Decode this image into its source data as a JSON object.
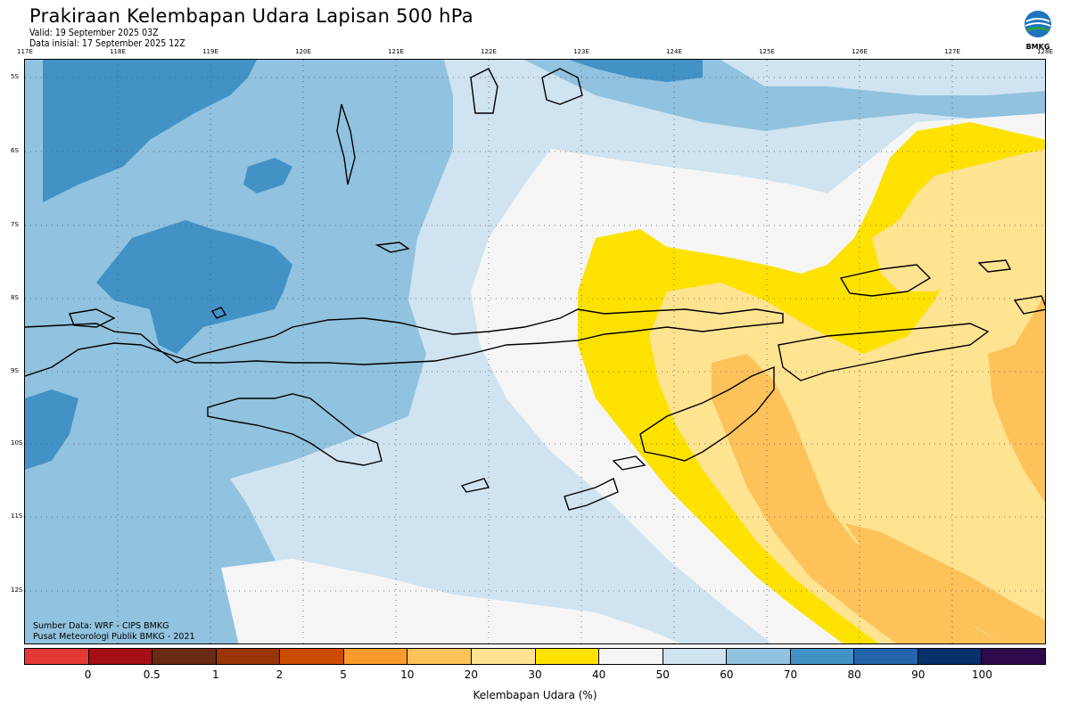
{
  "title": "Prakiraan Kelembapan Udara Lapisan 500 hPa",
  "valid": "Valid: 19 September 2025 03Z",
  "init": "Data inisial: 17 September 2025 12Z",
  "logo_text": "BMKG",
  "lon_labels": [
    "117E",
    "118E",
    "119E",
    "120E",
    "121E",
    "122E",
    "123E",
    "124E",
    "125E",
    "126E",
    "127E",
    "128E"
  ],
  "lat_labels": [
    "5S",
    "6S",
    "7S",
    "8S",
    "9S",
    "10S",
    "11S",
    "12S"
  ],
  "credit_source": "Sumber Data: WRF - CIPS BMKG",
  "credit_center": "Pusat Meteorologi Publik BMKG - 2021",
  "colorbar": {
    "ticks": [
      "0",
      "0.5",
      "1",
      "2",
      "5",
      "10",
      "20",
      "30",
      "40",
      "50",
      "60",
      "70",
      "80",
      "90",
      "100"
    ],
    "colors": [
      "#e53935",
      "#a50f15",
      "#6b2a14",
      "#993404",
      "#cc4c02",
      "#f89a2c",
      "#fdc259",
      "#fee391",
      "#fde200",
      "#f5f5f5",
      "#cfe3f0",
      "#91c2df",
      "#4292c6",
      "#2265ac",
      "#08306b",
      "#2d0b4b"
    ],
    "label": "Kelembapan Udara (%)"
  },
  "legend_colors": {
    "land_outline": "#000000",
    "humid_dark": "#4292c6",
    "humid_mid": "#91c2df",
    "humid_light": "#cfe3f0",
    "neutral": "#f5f5f5",
    "dry_yellow": "#fde200",
    "dry_pale": "#fee391",
    "dry_orange": "#fdc259"
  }
}
